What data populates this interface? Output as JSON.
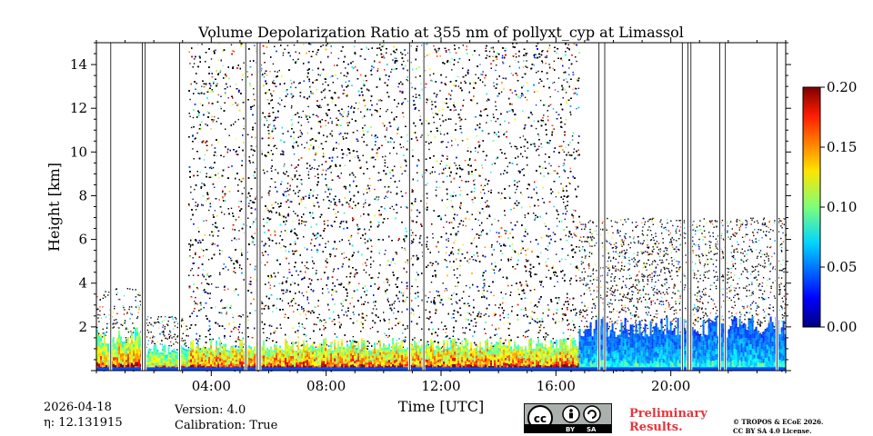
{
  "chart_data": {
    "type": "heatmap",
    "title": "Volume Depolarization Ratio at 355 nm of pollyxt_cyp at Limassol",
    "xlabel": "Time [UTC]",
    "ylabel": "Height [km]",
    "xlim_hours": [
      0,
      24
    ],
    "ylim_km": [
      0,
      15
    ],
    "x_ticks": [
      {
        "hour": 4,
        "label": "04:00"
      },
      {
        "hour": 8,
        "label": "08:00"
      },
      {
        "hour": 12,
        "label": "12:00"
      },
      {
        "hour": 16,
        "label": "16:00"
      },
      {
        "hour": 20,
        "label": "20:00"
      }
    ],
    "y_ticks": [
      {
        "value": 2,
        "label": "2"
      },
      {
        "value": 4,
        "label": "4"
      },
      {
        "value": 6,
        "label": "6"
      },
      {
        "value": 8,
        "label": "8"
      },
      {
        "value": 10,
        "label": "10"
      },
      {
        "value": 12,
        "label": "12"
      },
      {
        "value": 14,
        "label": "14"
      }
    ],
    "colorbar": {
      "min": 0.0,
      "max": 0.2,
      "ticks": [
        {
          "value": 0.0,
          "label": "0.00"
        },
        {
          "value": 0.05,
          "label": "0.05"
        },
        {
          "value": 0.1,
          "label": "0.10"
        },
        {
          "value": 0.15,
          "label": "0.15"
        },
        {
          "value": 0.2,
          "label": "0.20"
        }
      ],
      "colormap": "jet"
    },
    "regions": [
      {
        "from_h": 0.0,
        "to_h": 1.6,
        "noise_top_km": 3.8,
        "noise_density": 0.25,
        "aerosol_top_km": 2.0,
        "dep_value": 0.16
      },
      {
        "from_h": 1.6,
        "to_h": 3.2,
        "noise_top_km": 2.5,
        "noise_density": 0.4,
        "aerosol_top_km": 1.2,
        "dep_value": 0.14
      },
      {
        "from_h": 3.2,
        "to_h": 16.8,
        "noise_top_km": 15.0,
        "noise_density": 0.8,
        "aerosol_top_km": 1.5,
        "dep_value": 0.17
      },
      {
        "from_h": 16.8,
        "to_h": 24.0,
        "noise_top_km": 7.0,
        "noise_density": 0.35,
        "aerosol_top_km": 2.5,
        "dep_value": 0.07
      }
    ],
    "gaps_hours": [
      0.5,
      1.6,
      1.7,
      2.9,
      5.2,
      5.6,
      5.7,
      10.9,
      11.4,
      17.5,
      17.7,
      20.4,
      20.6,
      20.7,
      21.7,
      21.9,
      23.7
    ]
  },
  "footer": {
    "date": "2026-04-18",
    "eta": "η: 12.131915",
    "version": "Version: 4.0",
    "calibration": "Calibration: True",
    "license_by": "BY",
    "license_sa": "SA",
    "preliminary_line1": "Preliminary",
    "preliminary_line2": "Results.",
    "copyright_line1": "© TROPOS & ECoE 2026.",
    "copyright_line2": "CC BY SA 4.0 License."
  }
}
